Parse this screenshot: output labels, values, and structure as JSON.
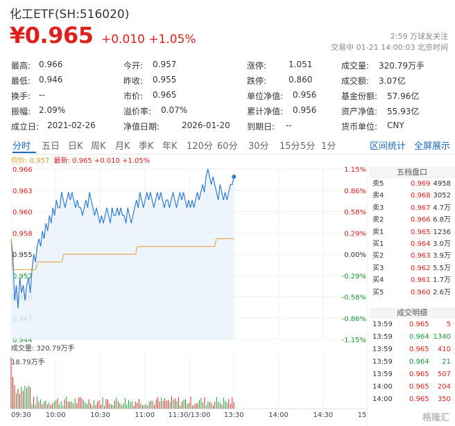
{
  "header": {
    "title": "化工ETF(SH:516020)",
    "price": "¥0.965",
    "change": "+0.010 +1.05%",
    "follow": "2:59 万球友关注",
    "trade_status": "交易中 01-21 14:00:03 北京时间"
  },
  "stats": [
    [
      {
        "label": "最高:",
        "value": "0.966",
        "color": "red"
      },
      {
        "label": "今开:",
        "value": "0.957",
        "color": "red"
      },
      {
        "label": "涨停:",
        "value": "1.051",
        "color": "red"
      },
      {
        "label": "成交量:",
        "value": "320.79万手",
        "color": ""
      }
    ],
    [
      {
        "label": "最低:",
        "value": "0.946",
        "color": "green"
      },
      {
        "label": "昨收:",
        "value": "0.955",
        "color": ""
      },
      {
        "label": "跌停:",
        "value": "0.860",
        "color": "green"
      },
      {
        "label": "成交额:",
        "value": "3.07亿",
        "color": ""
      }
    ],
    [
      {
        "label": "换手:",
        "value": "--",
        "color": ""
      },
      {
        "label": "市价:",
        "value": "0.965",
        "color": ""
      },
      {
        "label": "单位净值:",
        "value": "0.956",
        "color": ""
      },
      {
        "label": "基金份额:",
        "value": "57.96亿",
        "color": ""
      }
    ],
    [
      {
        "label": "振幅:",
        "value": "2.09%",
        "color": ""
      },
      {
        "label": "溢价率:",
        "value": "0.07%",
        "color": ""
      },
      {
        "label": "累计净值:",
        "value": "0.956",
        "color": ""
      },
      {
        "label": "资产净值:",
        "value": "55.93亿",
        "color": ""
      }
    ],
    [
      {
        "label": "成立日:",
        "value": "2021-02-26",
        "color": ""
      },
      {
        "label": "净值日期:",
        "value": "2026-01-20",
        "color": ""
      },
      {
        "label": "到期日:",
        "value": "--",
        "color": ""
      },
      {
        "label": "货币单位:",
        "value": "CNY",
        "color": ""
      }
    ]
  ],
  "tabs": [
    "分时",
    "五日",
    "日K",
    "周K",
    "月K",
    "季K",
    "年K",
    "120分",
    "60分",
    "30分",
    "15分",
    "5分",
    "1分"
  ],
  "links": {
    "interval_stats": "区间统计",
    "fullscreen": "全屏展示"
  },
  "legend": {
    "avg": "均价: 0.957",
    "last": "最新: 0.965 +0.010 +1.05%"
  },
  "chart_data": {
    "type": "line",
    "y_left_ticks": [
      "0.966",
      "0.963",
      "0.960",
      "0.958",
      "0.955",
      "0.952",
      "0.950",
      "0.947",
      "0.944"
    ],
    "y_right_ticks": [
      "1.15%",
      "0.86%",
      "0.58%",
      "0.29%",
      "0.00%",
      "-0.29%",
      "-0.58%",
      "-0.86%",
      "-1.15%"
    ],
    "x_ticks": [
      "09:30",
      "10:00",
      "10:30",
      "11:00",
      "11:30/13:00",
      "13:30",
      "14:00",
      "14:30",
      "15:00"
    ],
    "ylim": [
      0.944,
      0.966
    ],
    "series": [
      {
        "name": "最新",
        "values": [
          0.957,
          0.955,
          0.949,
          0.951,
          0.948,
          0.952,
          0.95,
          0.951,
          0.949,
          0.951,
          0.952,
          0.95,
          0.953,
          0.955,
          0.954,
          0.956,
          0.957,
          0.956,
          0.958,
          0.957,
          0.959,
          0.958,
          0.96,
          0.959,
          0.961,
          0.96,
          0.962,
          0.961,
          0.961,
          0.963,
          0.962,
          0.961,
          0.962,
          0.963,
          0.962,
          0.963,
          0.962,
          0.961,
          0.962,
          0.961,
          0.961,
          0.96,
          0.961,
          0.962,
          0.961,
          0.963,
          0.962,
          0.961,
          0.96,
          0.961,
          0.96,
          0.959,
          0.96,
          0.959,
          0.96,
          0.961,
          0.96,
          0.959,
          0.961,
          0.96,
          0.96,
          0.961,
          0.96,
          0.961,
          0.96,
          0.96,
          0.959,
          0.961,
          0.96,
          0.959,
          0.96,
          0.961,
          0.962,
          0.961,
          0.963,
          0.962,
          0.961,
          0.962,
          0.963,
          0.962,
          0.963,
          0.962,
          0.961,
          0.962,
          0.963,
          0.962,
          0.963,
          0.962,
          0.961,
          0.962,
          0.962,
          0.961,
          0.962,
          0.963,
          0.962,
          0.961,
          0.962,
          0.963,
          0.962,
          0.963,
          0.962,
          0.961,
          0.962,
          0.961,
          0.962,
          0.961,
          0.962,
          0.963,
          0.962,
          0.963,
          0.964,
          0.963,
          0.965,
          0.966,
          0.965,
          0.964,
          0.965,
          0.964,
          0.963,
          0.962,
          0.964,
          0.963,
          0.962,
          0.963,
          0.962,
          0.963,
          0.964,
          0.964,
          0.965
        ]
      },
      {
        "name": "均价",
        "values": [
          0.957,
          0.953,
          0.953,
          0.953,
          0.953,
          0.953,
          0.953,
          0.953,
          0.953,
          0.953,
          0.953,
          0.953,
          0.953,
          0.953,
          0.953,
          0.954,
          0.954,
          0.954,
          0.954,
          0.954,
          0.954,
          0.954,
          0.954,
          0.954,
          0.954,
          0.954,
          0.954,
          0.954,
          0.954,
          0.954,
          0.955,
          0.955,
          0.955,
          0.955,
          0.955,
          0.955,
          0.955,
          0.955,
          0.955,
          0.955,
          0.955,
          0.955,
          0.955,
          0.955,
          0.955,
          0.955,
          0.955,
          0.955,
          0.955,
          0.955,
          0.955,
          0.955,
          0.955,
          0.955,
          0.955,
          0.955,
          0.955,
          0.955,
          0.955,
          0.955,
          0.955,
          0.955,
          0.955,
          0.955,
          0.955,
          0.955,
          0.955,
          0.955,
          0.955,
          0.955,
          0.955,
          0.955,
          0.956,
          0.956,
          0.956,
          0.956,
          0.956,
          0.956,
          0.956,
          0.956,
          0.956,
          0.956,
          0.956,
          0.956,
          0.956,
          0.956,
          0.956,
          0.956,
          0.956,
          0.956,
          0.956,
          0.956,
          0.956,
          0.956,
          0.956,
          0.956,
          0.956,
          0.956,
          0.956,
          0.956,
          0.956,
          0.956,
          0.956,
          0.956,
          0.956,
          0.956,
          0.956,
          0.956,
          0.956,
          0.956,
          0.956,
          0.956,
          0.956,
          0.956,
          0.956,
          0.956,
          0.956,
          0.957,
          0.957,
          0.957,
          0.957,
          0.957,
          0.957,
          0.957,
          0.957,
          0.957,
          0.957,
          0.957
        ]
      }
    ]
  },
  "volume": {
    "label": "成交量: 320.79万手",
    "max_label": "18.79万手"
  },
  "orderbook": {
    "title": "五档盘口",
    "rows": [
      {
        "name": "卖5",
        "price": "0.969",
        "qty": "4958",
        "color": "red"
      },
      {
        "name": "卖4",
        "price": "0.968",
        "qty": "3052",
        "color": "red"
      },
      {
        "name": "卖3",
        "price": "0.967",
        "qty": "4.7万",
        "color": "red"
      },
      {
        "name": "卖2",
        "price": "0.966",
        "qty": "6.8万",
        "color": "red"
      },
      {
        "name": "卖1",
        "price": "0.965",
        "qty": "1236",
        "color": "red"
      },
      {
        "name": "买1",
        "price": "0.964",
        "qty": "3.0万",
        "color": "red"
      },
      {
        "name": "买2",
        "price": "0.963",
        "qty": "3.9万",
        "color": "red"
      },
      {
        "name": "买3",
        "price": "0.962",
        "qty": "5.5万",
        "color": "red"
      },
      {
        "name": "买4",
        "price": "0.961",
        "qty": "1.7万",
        "color": "red"
      },
      {
        "name": "买5",
        "price": "0.960",
        "qty": "2.6万",
        "color": "red"
      }
    ]
  },
  "trades": {
    "title": "成交明细",
    "rows": [
      {
        "time": "13:59",
        "price": "0.965",
        "vol": "5",
        "color": "red"
      },
      {
        "time": "13:59",
        "price": "0.964",
        "vol": "1340",
        "color": "green"
      },
      {
        "time": "13:59",
        "price": "0.965",
        "vol": "410",
        "color": "red"
      },
      {
        "time": "13:59",
        "price": "0.964",
        "vol": "21",
        "color": "green"
      },
      {
        "time": "13:59",
        "price": "0.965",
        "vol": "507",
        "color": "red"
      },
      {
        "time": "14:00",
        "price": "0.965",
        "vol": "204",
        "color": "red"
      },
      {
        "time": "14:00",
        "price": "0.965",
        "vol": "350",
        "color": "red"
      }
    ]
  },
  "watermark": "格隆汇",
  "colors": {
    "up": "#e0201c",
    "down": "#1a9a32",
    "line": "#2b7bd6",
    "avg": "#e69a2e",
    "accent": "#1a6bc0"
  }
}
